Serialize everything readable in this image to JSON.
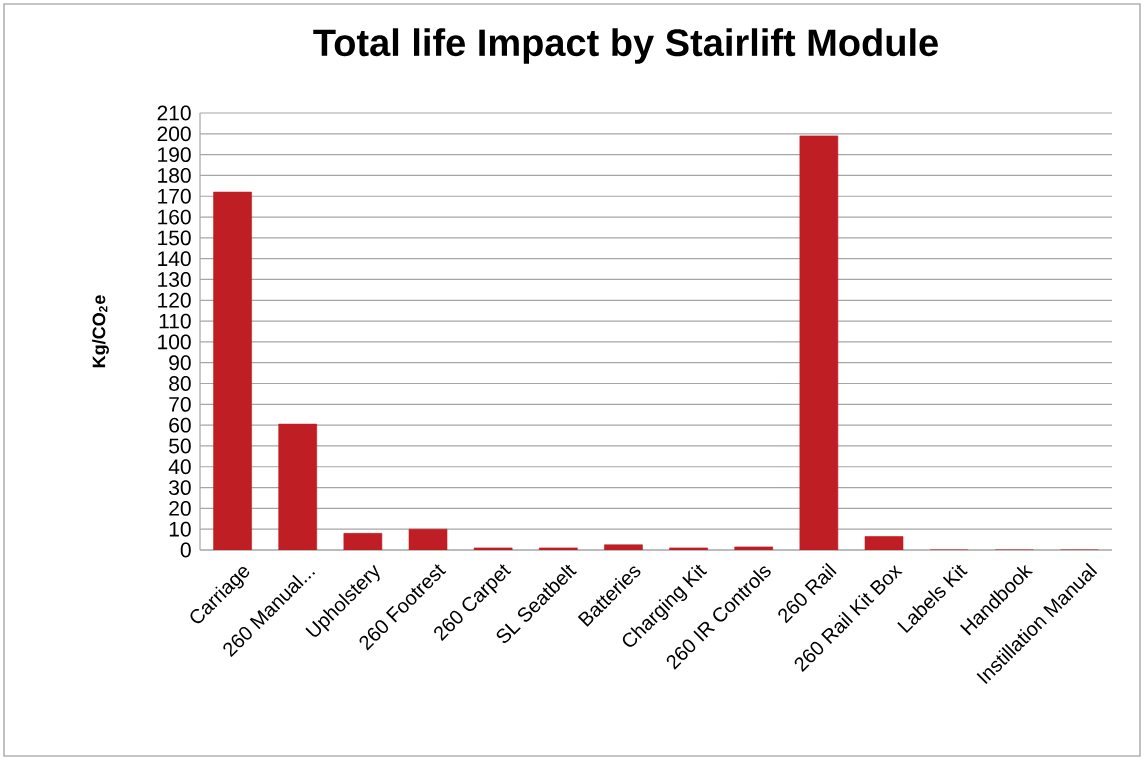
{
  "chart_data": {
    "type": "bar",
    "title": "Total life Impact by Stairlift Module",
    "ylabel": "Kg/CO$_{2}$e",
    "categories": [
      "Carriage",
      "260 Manual...",
      "Upholstery",
      "260 Footrest",
      "260 Carpet",
      "SL Seatbelt",
      "Batteries",
      "Charging Kit",
      "260 IR Controls",
      "260 Rail",
      "260 Rail Kit Box",
      "Labels Kit",
      "Handbook",
      "Instillation Manual"
    ],
    "values": [
      172,
      60.5,
      8,
      10,
      1,
      1,
      2.5,
      1,
      1.5,
      199,
      6.5,
      0,
      0,
      0
    ],
    "color": "#be1e24",
    "ylim": [
      0,
      210
    ],
    "yticks": [
      0,
      10,
      20,
      30,
      40,
      50,
      60,
      70,
      80,
      90,
      100,
      110,
      120,
      130,
      140,
      150,
      160,
      170,
      180,
      190,
      200,
      210
    ],
    "grid": "y"
  }
}
